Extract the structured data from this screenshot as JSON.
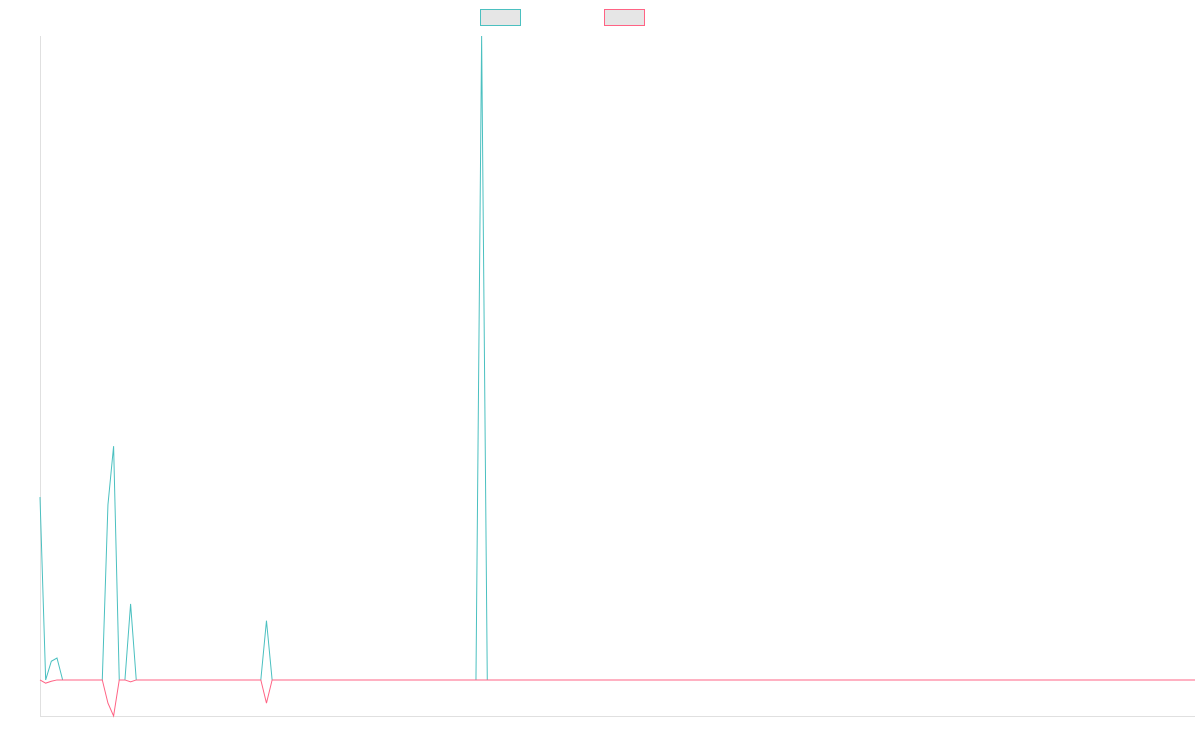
{
  "chart_data": {
    "type": "line",
    "ylim": [
      -5.6,
      100
    ],
    "grid": false,
    "series": [
      {
        "color": "#4bc0c0",
        "values": [
          28.4,
          0,
          2.9,
          3.4,
          0,
          0,
          0,
          0,
          0,
          0,
          0,
          0,
          27.2,
          36.3,
          0,
          0,
          11.8,
          0,
          0,
          0,
          0,
          0,
          0,
          0,
          0,
          0,
          0,
          0,
          0,
          0,
          0,
          0,
          0,
          0,
          0,
          0,
          0,
          0,
          0,
          0,
          9.2,
          0,
          0,
          0,
          0,
          0,
          0,
          0,
          0,
          0,
          0,
          0,
          0,
          0,
          0,
          0,
          0,
          0,
          0,
          0,
          0,
          0,
          0,
          0,
          0,
          0,
          0,
          0,
          0,
          0,
          0,
          0,
          0,
          0,
          0,
          0,
          0,
          0,
          100,
          0,
          0,
          0,
          0,
          0,
          0,
          0,
          0,
          0,
          0,
          0,
          0,
          0,
          0,
          0,
          0,
          0,
          0,
          0,
          0,
          0,
          0,
          0,
          0,
          0,
          0,
          0,
          0,
          0,
          0,
          0,
          0,
          0,
          0,
          0,
          0,
          0,
          0,
          0,
          0,
          0,
          0,
          0,
          0,
          0,
          0,
          0,
          0,
          0,
          0,
          0,
          0,
          0,
          0,
          0,
          0,
          0,
          0,
          0,
          0,
          0,
          0,
          0,
          0,
          0,
          0,
          0,
          0,
          0,
          0,
          0,
          0,
          0,
          0,
          0,
          0,
          0,
          0,
          0,
          0,
          0,
          0,
          0,
          0,
          0,
          0,
          0,
          0,
          0,
          0,
          0,
          0,
          0,
          0,
          0,
          0,
          0,
          0,
          0,
          0,
          0,
          0,
          0,
          0,
          0,
          0,
          0,
          0,
          0,
          0,
          0,
          0,
          0,
          0,
          0,
          0,
          0,
          0,
          0,
          0,
          0,
          0,
          0,
          0,
          0,
          0
        ]
      },
      {
        "color": "#ff6384",
        "values": [
          0,
          -0.5,
          -0.2,
          0,
          0,
          0,
          0,
          0,
          0,
          0,
          0,
          0,
          -3.6,
          -5.6,
          0,
          0,
          -0.3,
          0,
          0,
          0,
          0,
          0,
          0,
          0,
          0,
          0,
          0,
          0,
          0,
          0,
          0,
          0,
          0,
          0,
          0,
          0,
          0,
          0,
          0,
          0,
          -3.6,
          0,
          0,
          0,
          0,
          0,
          0,
          0,
          0,
          0,
          0,
          0,
          0,
          0,
          0,
          0,
          0,
          0,
          0,
          0,
          0,
          0,
          0,
          0,
          0,
          0,
          0,
          0,
          0,
          0,
          0,
          0,
          0,
          0,
          0,
          0,
          0,
          0,
          0,
          0,
          0,
          0,
          0,
          0,
          0,
          0,
          0,
          0,
          0,
          0,
          0,
          0,
          0,
          0,
          0,
          0,
          0,
          0,
          0,
          0,
          0,
          0,
          0,
          0,
          0,
          0,
          0,
          0,
          0,
          0,
          0,
          0,
          0,
          0,
          0,
          0,
          0,
          0,
          0,
          0,
          0,
          0,
          0,
          0,
          0,
          0,
          0,
          0,
          0,
          0,
          0,
          0,
          0,
          0,
          0,
          0,
          0,
          0,
          0,
          0,
          0,
          0,
          0,
          0,
          0,
          0,
          0,
          0,
          0,
          0,
          0,
          0,
          0,
          0,
          0,
          0,
          0,
          0,
          0,
          0,
          0,
          0,
          0,
          0,
          0,
          0,
          0,
          0,
          0,
          0,
          0,
          0,
          0,
          0,
          0,
          0,
          0,
          0,
          0,
          0,
          0,
          0,
          0,
          0,
          0,
          0,
          0,
          0,
          0,
          0,
          0,
          0,
          0,
          0,
          0,
          0,
          0,
          0,
          0,
          0,
          0,
          0,
          0,
          0,
          0
        ]
      }
    ]
  }
}
